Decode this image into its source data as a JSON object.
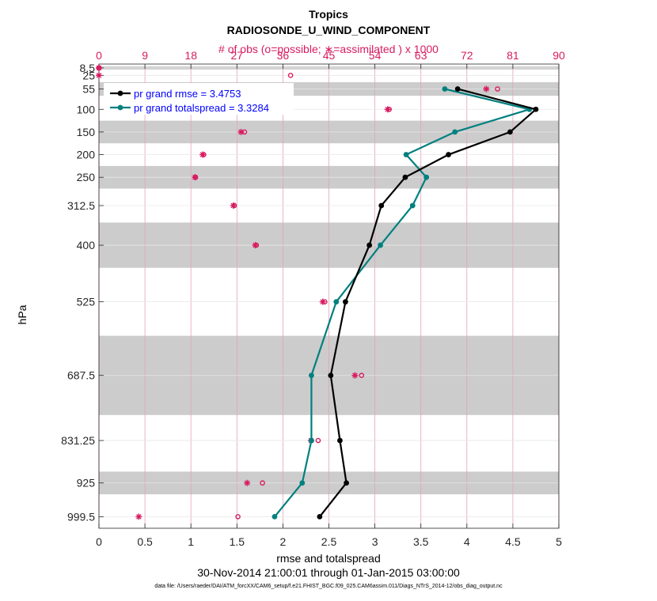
{
  "title": "Tropics",
  "subtitle": "RADIOSONDE_U_WIND_COMPONENT",
  "top_axis_label": "# of obs (o=possible; ∗=assimilated ) x 1000",
  "xlabel": "rmse and totalspread",
  "ylabel": "hPa",
  "date_range": "30-Nov-2014 21:00:01 through 01-Jan-2015 03:00:00",
  "data_file": "data file: /Users/raeder/DAI/ATM_forcXX/CAM6_setup/f.e21.FHIST_BGC.f09_025.CAM6assim.011/Diags_NTrS_2014-12/obs_diag_output.nc",
  "colors": {
    "rmse": "#000000",
    "spread": "#00807f",
    "obs": "#d81b60",
    "band": "#cccccc",
    "legend_text": "#0000ff"
  },
  "chart_data": {
    "type": "line",
    "title": "Tropics",
    "subtitle": "RADIOSONDE_U_WIND_COMPONENT",
    "xlabel": "rmse and totalspread",
    "ylabel": "hPa",
    "xlim": [
      0,
      5
    ],
    "x_ticks": [
      "0",
      "0.5",
      "1",
      "1.5",
      "2",
      "2.5",
      "3",
      "3.5",
      "4",
      "4.5",
      "5"
    ],
    "top_xlim": [
      0,
      90
    ],
    "top_ticks": [
      "0",
      "9",
      "18",
      "27",
      "36",
      "45",
      "54",
      "63",
      "72",
      "81",
      "90"
    ],
    "pressure_levels": [
      8.5,
      25,
      55,
      100,
      150,
      200,
      250,
      312.5,
      400,
      525,
      687.5,
      831.25,
      925,
      999.5
    ],
    "y_tick_labels": [
      "8.5",
      "25",
      "55",
      "100",
      "150",
      "200",
      "250",
      "312.5",
      "400",
      "525",
      "687.5",
      "831.25",
      "925",
      "999.5"
    ],
    "grid": true,
    "legend_position": "top-left",
    "series": [
      {
        "name": "rmse",
        "legend": "pr grand rmse = 3.4753",
        "levels": [
          55,
          100,
          150,
          200,
          250,
          312.5,
          400,
          525,
          687.5,
          831.25,
          925,
          999.5
        ],
        "values": [
          3.9,
          4.75,
          4.47,
          3.8,
          3.33,
          3.07,
          2.94,
          2.68,
          2.52,
          2.62,
          2.69,
          2.4
        ]
      },
      {
        "name": "totalspread",
        "legend": "pr grand totalspread = 3.3284",
        "levels": [
          55,
          100,
          150,
          200,
          250,
          312.5,
          400,
          525,
          687.5,
          831.25,
          925,
          999.5
        ],
        "values": [
          3.76,
          4.68,
          3.87,
          3.34,
          3.56,
          3.41,
          3.06,
          2.58,
          2.31,
          2.31,
          2.21,
          1.91
        ]
      },
      {
        "name": "obs possible (x1000)",
        "levels": [
          8.5,
          25,
          55,
          100,
          150,
          200,
          250,
          312.5,
          400,
          525,
          687.5,
          831.25,
          925,
          999.5
        ],
        "values": [
          0.0,
          37.5,
          78.0,
          56.8,
          28.5,
          20.5,
          18.9,
          26.5,
          30.8,
          44.2,
          51.4,
          42.9,
          32.0,
          27.2
        ]
      },
      {
        "name": "obs assimilated (x1000)",
        "levels": [
          8.5,
          25,
          55,
          100,
          150,
          200,
          250,
          312.5,
          400,
          525,
          687.5,
          831.25,
          925,
          999.5
        ],
        "values": [
          0.0,
          0.0,
          75.8,
          56.5,
          27.8,
          20.3,
          18.8,
          26.3,
          30.6,
          43.8,
          50.1,
          41.5,
          29.0,
          7.8
        ]
      }
    ],
    "shaded_bands": [
      [
        5,
        12
      ],
      [
        40,
        70
      ],
      [
        125,
        175
      ],
      [
        225,
        275
      ],
      [
        350,
        450
      ],
      [
        600,
        775
      ],
      [
        900,
        950
      ]
    ]
  }
}
